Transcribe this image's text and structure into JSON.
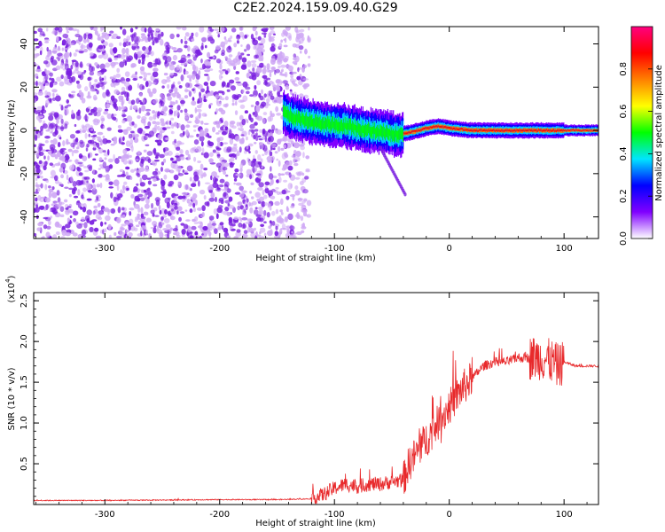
{
  "title": "C2E2.2024.159.09.40.G29",
  "colors": {
    "snr_line": "#e8292b",
    "scatter": "#7a1fe0",
    "scatter_light": "#cfa8f5",
    "axis": "#000000"
  },
  "chart_data": [
    {
      "type": "heatmap",
      "title": "C2E2.2024.159.09.40.G29",
      "xlabel": "Height of straight line (km)",
      "ylabel": "Frequency (Hz)",
      "xlim": [
        -362,
        130
      ],
      "ylim": [
        -50,
        48
      ],
      "xticks": [
        -300,
        -200,
        -100,
        0,
        100
      ],
      "yticks": [
        -40,
        -20,
        0,
        20,
        40
      ],
      "xtick_labels": [
        "-300",
        "-200",
        "-100",
        "0",
        "100"
      ],
      "ytick_labels": [
        "-40",
        "-20",
        "0",
        "20",
        "40"
      ],
      "noise_region_x": [
        -362,
        -130
      ],
      "signal_track": {
        "x": [
          -145,
          -130,
          -110,
          -90,
          -70,
          -55,
          -45,
          -35,
          -20,
          -10,
          0,
          20,
          50,
          80,
          95,
          130
        ],
        "y": [
          8,
          5,
          3,
          2,
          0,
          -1,
          -2,
          -1,
          1,
          2,
          1,
          0,
          0,
          0,
          0,
          0
        ]
      },
      "colorbar": {
        "label": "Normalized spectral amplitude",
        "range": [
          0,
          1
        ],
        "ticks": [
          0.0,
          0.2,
          0.4,
          0.6,
          0.8
        ],
        "tick_labels": [
          "0.0",
          "0.2",
          "0.4",
          "0.6",
          "0.8"
        ],
        "colormap": [
          "#ffffff",
          "#8000ff",
          "#0000ff",
          "#00e5ff",
          "#00ff00",
          "#ffff00",
          "#ff8000",
          "#ff0000",
          "#ff0080"
        ]
      }
    },
    {
      "type": "line",
      "xlabel": "Height of straight line (km)",
      "ylabel": "SNR (10 * v/v)",
      "y_multiplier_label": "(x10",
      "y_multiplier_exp": "4",
      "y_multiplier_close": ")",
      "xlim": [
        -362,
        130
      ],
      "ylim": [
        0,
        2.6
      ],
      "xticks": [
        -300,
        -200,
        -100,
        0,
        100
      ],
      "yticks": [
        0.5,
        1.0,
        1.5,
        2.0,
        2.5
      ],
      "xtick_labels": [
        "-300",
        "-200",
        "-100",
        "0",
        "100"
      ],
      "ytick_labels": [
        "0.5",
        "1.0",
        "1.5",
        "2.0",
        "2.5"
      ],
      "series": [
        {
          "x": [
            -362,
            -300,
            -200,
            -150,
            -120,
            -110,
            -100,
            -90,
            -80,
            -70,
            -60,
            -50,
            -40,
            -35,
            -30,
            -20,
            -10,
            0,
            10,
            20,
            30,
            40,
            50,
            60,
            70,
            80,
            90,
            95,
            100,
            110,
            130
          ],
          "y": [
            0.05,
            0.05,
            0.06,
            0.06,
            0.07,
            0.12,
            0.2,
            0.25,
            0.22,
            0.25,
            0.25,
            0.28,
            0.3,
            0.5,
            0.6,
            0.8,
            1.0,
            1.2,
            1.4,
            1.55,
            1.7,
            1.75,
            1.75,
            1.8,
            1.8,
            1.8,
            1.75,
            1.7,
            1.75,
            1.7,
            1.7
          ]
        }
      ]
    }
  ]
}
